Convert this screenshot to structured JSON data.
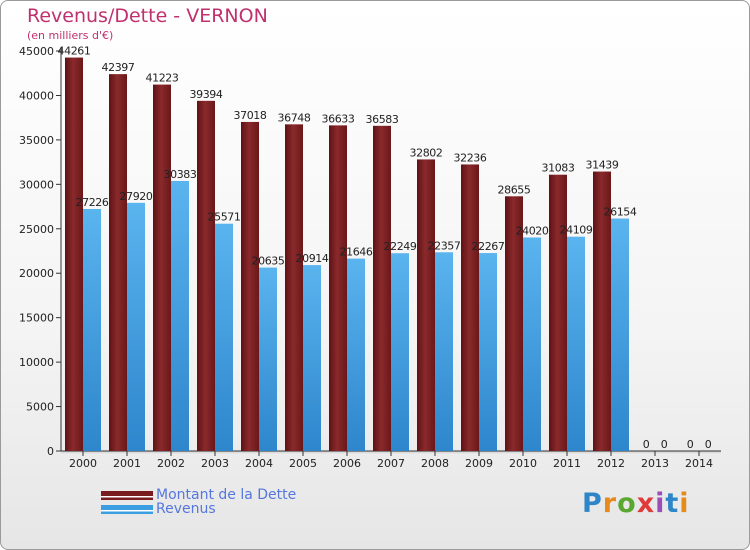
{
  "chart_data": {
    "type": "bar",
    "title": "Revenus/Dette - VERNON",
    "subtitle": "(en milliers d'€)",
    "categories": [
      "2000",
      "2001",
      "2002",
      "2003",
      "2004",
      "2005",
      "2006",
      "2007",
      "2008",
      "2009",
      "2010",
      "2011",
      "2012",
      "2013",
      "2014"
    ],
    "series": [
      {
        "name": "Montant de la Dette",
        "color": "#7a1c1e",
        "values": [
          44261,
          42397,
          41223,
          39394,
          37018,
          36748,
          36633,
          36583,
          32802,
          32236,
          28655,
          31083,
          31439,
          0,
          0
        ]
      },
      {
        "name": "Revenus",
        "color": "#3b9ee0",
        "values": [
          27226,
          27920,
          30383,
          25571,
          20635,
          20914,
          21646,
          22249,
          22357,
          22267,
          24020,
          24109,
          26154,
          0,
          0
        ]
      }
    ],
    "yticks": [
      0,
      5000,
      10000,
      15000,
      20000,
      25000,
      30000,
      35000,
      40000,
      45000
    ],
    "ylim": [
      0,
      45000
    ],
    "grid": false,
    "legend_position": "bottom-left"
  },
  "logo": {
    "letters": [
      "P",
      "r",
      "o",
      "x",
      "i",
      "t",
      "i"
    ],
    "colors": [
      "#2e86c8",
      "#e68a1c",
      "#5aa832",
      "#e03a3a",
      "#9a4fb8",
      "#2e86c8",
      "#e68a1c"
    ]
  }
}
